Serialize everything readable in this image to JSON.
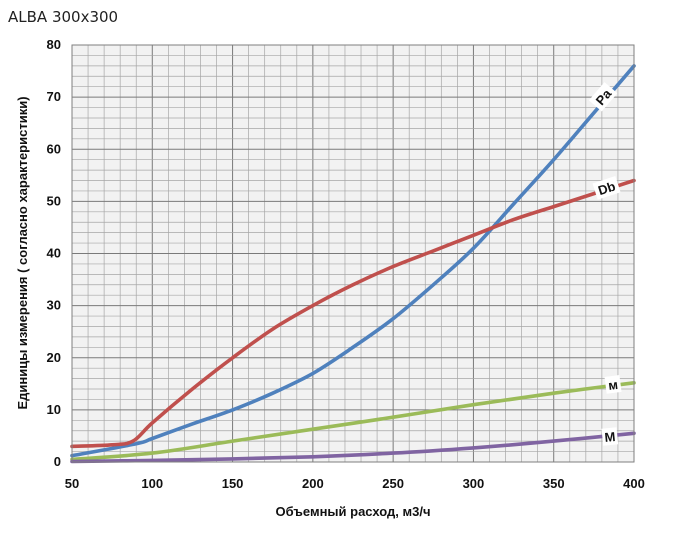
{
  "chart_data": {
    "type": "line",
    "title": "ALBA 300x300",
    "xlabel": "Объемный расход, м3/ч",
    "ylabel": "Единицы измерения ( согласно характеристики)",
    "xlim": [
      50,
      400
    ],
    "ylim": [
      0,
      80
    ],
    "x_ticks": [
      50,
      100,
      150,
      200,
      250,
      300,
      350,
      400
    ],
    "y_ticks": [
      0,
      10,
      20,
      30,
      40,
      50,
      60,
      70,
      80
    ],
    "x_minor_step": 10,
    "y_minor_step": 2,
    "grid": true,
    "series": [
      {
        "name": "Pa",
        "color": "#4f81bd",
        "x": [
          50,
          90,
          100,
          125,
          150,
          175,
          200,
          225,
          250,
          275,
          300,
          325,
          350,
          375,
          400
        ],
        "y": [
          1.2,
          3.5,
          4.5,
          7.3,
          10.0,
          13.2,
          17.0,
          22.0,
          27.5,
          34.0,
          41.0,
          49.5,
          58.0,
          67.0,
          76.0
        ],
        "label_at": [
          381,
          70
        ]
      },
      {
        "name": "Db",
        "color": "#c0504d",
        "x": [
          50,
          75,
          88,
          100,
          125,
          150,
          175,
          200,
          225,
          250,
          275,
          300,
          325,
          350,
          375,
          400
        ],
        "y": [
          3.0,
          3.3,
          4.0,
          7.5,
          14.0,
          20.0,
          25.5,
          30.0,
          34.0,
          37.5,
          40.5,
          43.5,
          46.5,
          49.0,
          51.5,
          54.0
        ],
        "label_at": [
          383,
          52.5
        ]
      },
      {
        "name": "м",
        "color": "#9bbb59",
        "x": [
          50,
          100,
          150,
          200,
          250,
          300,
          350,
          400
        ],
        "y": [
          0.5,
          1.7,
          4.0,
          6.3,
          8.6,
          11.0,
          13.2,
          15.2
        ],
        "label_at": [
          387,
          14.8
        ]
      },
      {
        "name": "M",
        "color": "#8064a2",
        "x": [
          50,
          100,
          150,
          200,
          250,
          300,
          350,
          400
        ],
        "y": [
          0.1,
          0.3,
          0.6,
          1.0,
          1.7,
          2.7,
          4.0,
          5.5
        ],
        "label_at": [
          385,
          4.8
        ]
      }
    ]
  }
}
